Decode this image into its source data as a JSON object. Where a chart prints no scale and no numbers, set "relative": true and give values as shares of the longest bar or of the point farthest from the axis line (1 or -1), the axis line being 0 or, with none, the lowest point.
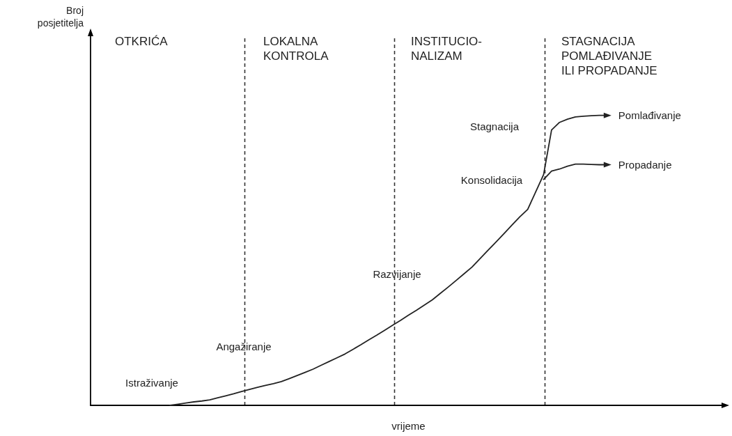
{
  "chart_data": {
    "type": "line",
    "relative": true,
    "xlabel": "vrijeme",
    "grid": false,
    "legend": false,
    "line_style": "solid",
    "categories": [
      null,
      null,
      null,
      null,
      null,
      null,
      null,
      null,
      null,
      null,
      null,
      null,
      null,
      null,
      null,
      null,
      null,
      null,
      null,
      null,
      null,
      null,
      null,
      null,
      null,
      null,
      null,
      null,
      null,
      null,
      null,
      null,
      null,
      null,
      null,
      null,
      null,
      null,
      null,
      null,
      null,
      null,
      null,
      null,
      null,
      null,
      null,
      null,
      null,
      null,
      null,
      null,
      null,
      null,
      null,
      null,
      null,
      null,
      null,
      null,
      null,
      null,
      null,
      null,
      null,
      null,
      null,
      null,
      null,
      null,
      null,
      null,
      null,
      null,
      null,
      null,
      null,
      null,
      null,
      null,
      null
    ],
    "series": [
      {
        "name": "Pomlađivanje",
        "color": "#222222",
        "values": [
          null,
          null,
          null,
          null,
          null,
          null,
          null,
          null,
          null,
          null,
          0,
          0.004,
          0.008,
          0.012,
          0.015,
          0.019,
          0.026,
          0.033,
          0.04,
          0.048,
          0.055,
          0.062,
          0.069,
          0.075,
          0.082,
          0.092,
          0.103,
          0.114,
          0.125,
          0.138,
          0.151,
          0.164,
          0.177,
          0.193,
          0.209,
          0.226,
          0.242,
          0.259,
          0.276,
          0.293,
          0.311,
          0.328,
          0.346,
          0.364,
          0.386,
          0.408,
          0.431,
          0.454,
          0.477,
          0.506,
          0.535,
          0.563,
          0.592,
          0.621,
          0.65,
          0.676,
          0.736,
          0.796,
          0.95,
          0.976,
          0.987,
          0.995,
          0.997,
          0.999,
          1,
          1,
          null,
          null,
          null,
          null,
          null,
          null,
          null,
          null,
          null,
          null,
          null,
          null,
          null,
          null,
          null
        ]
      },
      {
        "name": "Propadanje",
        "color": "#222222",
        "values": [
          null,
          null,
          null,
          null,
          null,
          null,
          null,
          null,
          null,
          null,
          null,
          null,
          null,
          null,
          null,
          null,
          null,
          null,
          null,
          null,
          null,
          null,
          null,
          null,
          null,
          null,
          null,
          null,
          null,
          null,
          null,
          null,
          null,
          null,
          null,
          null,
          null,
          null,
          null,
          null,
          null,
          null,
          null,
          null,
          null,
          null,
          null,
          null,
          null,
          null,
          null,
          null,
          null,
          null,
          null,
          null,
          null,
          0.779,
          0.808,
          0.815,
          0.825,
          0.832,
          0.832,
          0.831,
          0.83,
          0.83,
          null,
          null,
          null,
          null,
          null,
          null,
          null,
          null,
          null,
          null,
          null,
          null,
          null,
          null,
          null
        ]
      }
    ],
    "annotations": [
      "Broj\nposjetitelja",
      "OTKRIĆA",
      "LOKALNA\nKONTROLA",
      "INSTITUCIO-\nNALIZAM",
      "STAGNACIJA\nPOMLAĐIVANJE\nILI PROPADANJE",
      "Istraživanje",
      "Angažiranje",
      "Razvijanje",
      "Konsolidacija",
      "Stagnacija"
    ]
  }
}
